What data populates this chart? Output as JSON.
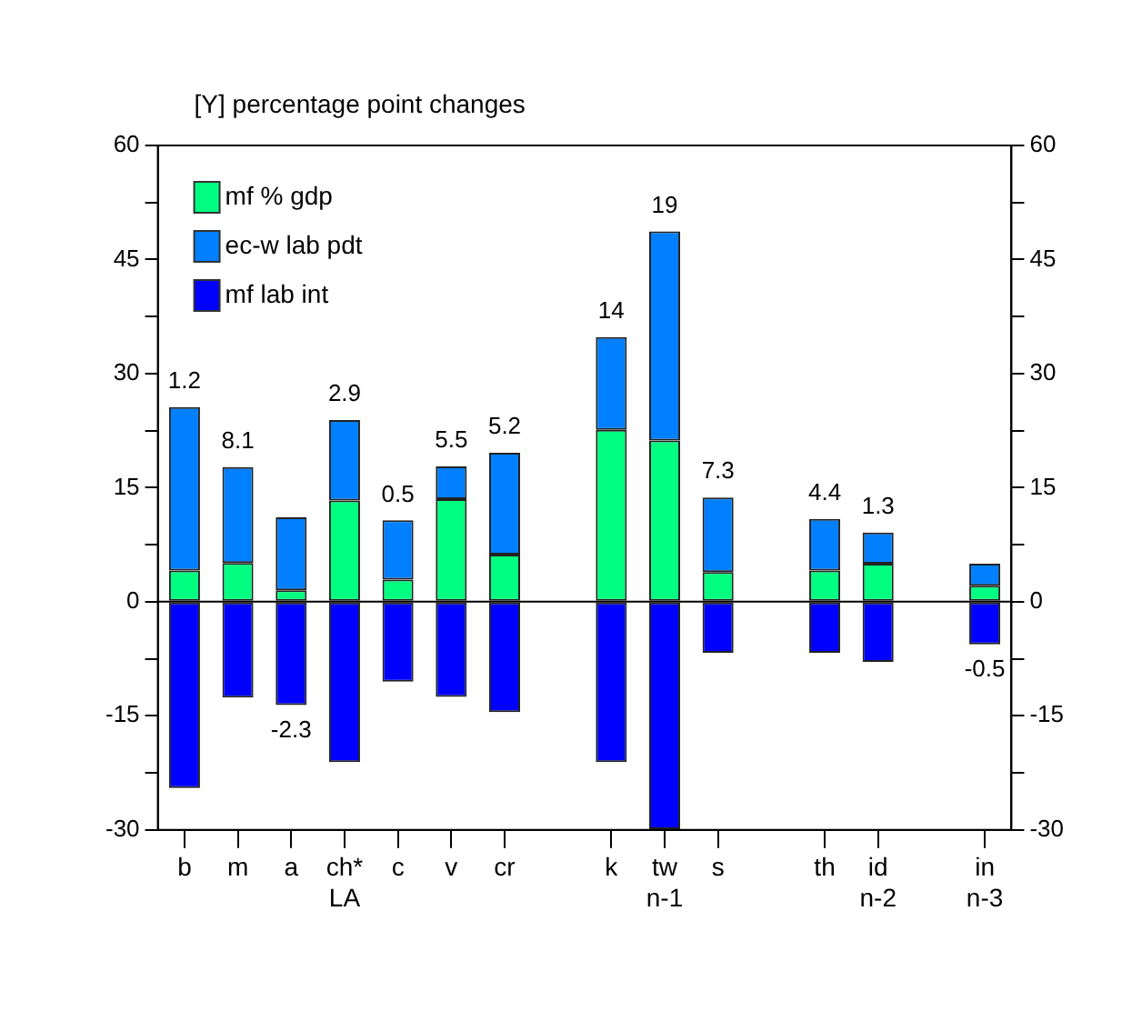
{
  "chart_data": {
    "type": "bar",
    "title": "[Y] percentage point changes",
    "categories": [
      "b",
      "m",
      "a",
      "ch*\nLA",
      "c",
      "v",
      "cr",
      null,
      "k",
      "tw\nn-1",
      "s",
      null,
      "th",
      "id\nn-2",
      null,
      "in\nn-3"
    ],
    "stacked": true,
    "series": [
      {
        "name": "mf % gdp",
        "color": "#00ff80",
        "values": [
          4.1,
          5.1,
          1.5,
          13.3,
          2.9,
          13.5,
          6.2,
          null,
          22.6,
          21.2,
          3.9,
          null,
          4.1,
          5.0,
          null,
          2.1
        ]
      },
      {
        "name": "ec-w lab pdt",
        "color": "#0080ff",
        "values": [
          21.5,
          12.6,
          9.6,
          10.6,
          7.8,
          4.3,
          13.4,
          null,
          12.2,
          27.5,
          9.8,
          null,
          6.8,
          4.1,
          null,
          2.9
        ]
      },
      {
        "name": "mf lab int",
        "color": "#0000ff",
        "values": [
          -24.5,
          -12.6,
          -13.6,
          -21.1,
          -10.5,
          -12.5,
          -14.5,
          null,
          -21.1,
          -29.9,
          -6.7,
          null,
          -6.7,
          -7.9,
          null,
          -5.6
        ]
      }
    ],
    "ylim": [
      -30,
      60
    ],
    "yticks": [
      -30,
      {
        "value": -22.5,
        "label": null
      },
      -15,
      {
        "value": -7.5,
        "label": null
      },
      0,
      {
        "value": 7.5,
        "label": null
      },
      15,
      {
        "value": 22.5,
        "label": null
      },
      30,
      {
        "value": 37.5,
        "label": null
      },
      45,
      {
        "value": 52.5,
        "label": null
      },
      60
    ],
    "y2lim": [
      -30,
      60
    ],
    "y2ticks": [
      -30,
      {
        "value": -22.5,
        "label": null
      },
      -15,
      {
        "value": -7.5,
        "label": null
      },
      0,
      {
        "value": 7.5,
        "label": null
      },
      15,
      {
        "value": 22.5,
        "label": null
      },
      30,
      {
        "value": 37.5,
        "label": null
      },
      45,
      {
        "value": 52.5,
        "label": null
      },
      60
    ],
    "annotations": [
      {
        "text": "1.2",
        "x": "b",
        "y": 25.6
      },
      {
        "text": "8.1",
        "x": "m",
        "y": 17.7
      },
      {
        "text": "-2.3",
        "x": "a",
        "y": -13.6
      },
      {
        "text": "2.9",
        "x": "ch*\nLA",
        "y": 23.9
      },
      {
        "text": "0.5",
        "x": "c",
        "y": 10.7
      },
      {
        "text": "5.5",
        "x": "v",
        "y": 17.8
      },
      {
        "text": "5.2",
        "x": "cr",
        "y": 19.6
      },
      {
        "text": "14",
        "x": "k",
        "y": 34.8
      },
      {
        "text": "19",
        "x": "tw\nn-1",
        "y": 48.7
      },
      {
        "text": "7.3",
        "x": "s",
        "y": 13.7
      },
      {
        "text": "4.4",
        "x": "th",
        "y": 10.9
      },
      {
        "text": "1.3",
        "x": "id\nn-2",
        "y": 9.1
      },
      {
        "text": "-0.5",
        "x": "in\nn-3",
        "y": -5.6
      }
    ],
    "ref_lines": [
      {
        "axis": "y",
        "value": 0
      }
    ],
    "legend": "top left",
    "grid": false
  }
}
